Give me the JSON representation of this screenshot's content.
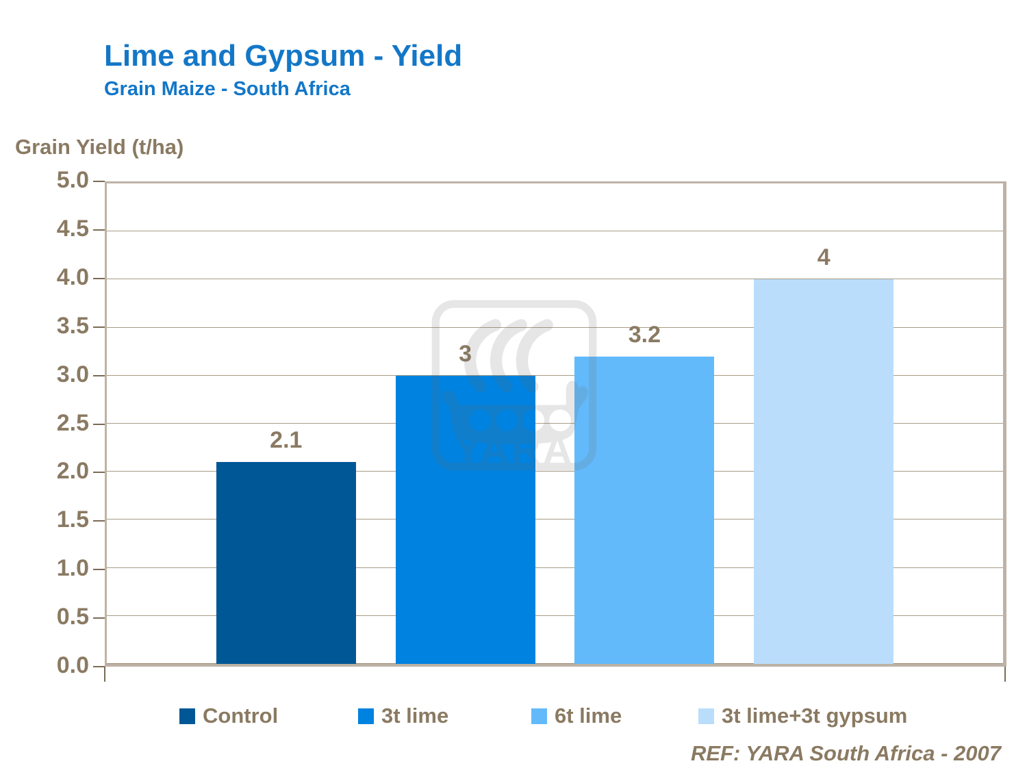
{
  "header": {
    "title": "Lime and Gypsum - Yield",
    "subtitle": "Grain Maize - South Africa"
  },
  "axis_title": "Grain Yield (t/ha)",
  "watermark_text": "YARA",
  "ref_text": "REF: YARA South Africa - 2007",
  "colors": {
    "title_blue": "#1377C8",
    "text_brown": "#8A7A62",
    "plot_border": "#BDB2A6",
    "gridline": "#A89B85",
    "tick": "#7B6B55"
  },
  "chart_data": {
    "type": "bar",
    "title": "Lime and Gypsum - Yield",
    "subtitle": "Grain Maize - South Africa",
    "ylabel": "Grain Yield (t/ha)",
    "categories": [
      "Control",
      "3t lime",
      "6t lime",
      "3t lime+3t gypsum"
    ],
    "values": [
      2.1,
      3,
      3.2,
      4
    ],
    "value_labels": [
      "2.1",
      "3",
      "3.2",
      "4"
    ],
    "bar_colors": [
      "#005796",
      "#0082E0",
      "#63BAFB",
      "#BADDFB"
    ],
    "ylim": [
      0,
      5
    ],
    "ytick_step": 0.5,
    "ytick_labels": [
      "0.0",
      "0.5",
      "1.0",
      "1.5",
      "2.0",
      "2.5",
      "3.0",
      "3.5",
      "4.0",
      "4.5",
      "5.0"
    ],
    "grid": true,
    "legend_position": "bottom",
    "annotation": "REF: YARA South Africa - 2007"
  }
}
